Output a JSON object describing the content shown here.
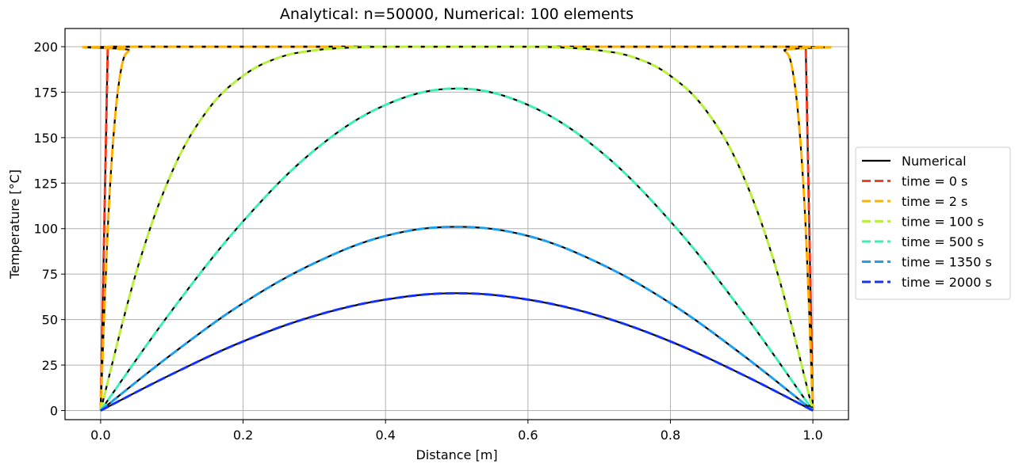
{
  "chart_data": {
    "type": "line",
    "title": "Analytical: n=50000, Numerical: 100 elements",
    "xlabel": "Distance [m]",
    "ylabel": "Temperature [°C]",
    "xlim": [
      -0.05,
      1.05
    ],
    "ylim": [
      -5,
      210
    ],
    "xticks": [
      0.0,
      0.2,
      0.4,
      0.6,
      0.8,
      1.0
    ],
    "xtick_labels": [
      "0.0",
      "0.2",
      "0.4",
      "0.6",
      "0.8",
      "1.0"
    ],
    "yticks": [
      0,
      25,
      50,
      75,
      100,
      125,
      150,
      175,
      200
    ],
    "ytick_labels": [
      "0",
      "25",
      "50",
      "75",
      "100",
      "125",
      "150",
      "175",
      "200"
    ],
    "grid": true,
    "legend_position": "right-outside",
    "numerical_label": "Numerical",
    "numerical_color": "#000000",
    "series": [
      {
        "name": "time = 0 s",
        "time": 0,
        "color": "#ff3c1e",
        "x": [
          0,
          0.01,
          0.99,
          1.0
        ],
        "values": [
          0,
          200,
          200,
          0
        ]
      },
      {
        "name": "time = 2 s",
        "time": 2,
        "color": "#ffb300",
        "x": [
          0,
          0.01,
          0.02,
          0.03,
          0.04,
          0.05,
          0.95,
          0.96,
          0.97,
          0.98,
          0.99,
          1.0
        ],
        "values": [
          0,
          100,
          160,
          190,
          198,
          200,
          200,
          198,
          190,
          160,
          100,
          0
        ]
      },
      {
        "name": "time = 100 s",
        "time": 100,
        "color": "#b8f03c",
        "x": [
          0,
          0.05,
          0.1,
          0.15,
          0.2,
          0.25,
          0.3,
          0.35,
          0.4,
          0.5,
          0.6,
          0.65,
          0.7,
          0.75,
          0.8,
          0.85,
          0.9,
          0.95,
          1.0
        ],
        "values": [
          0,
          76,
          131,
          165,
          184,
          194,
          198,
          199.5,
          200,
          200,
          200,
          199.5,
          198,
          194,
          184,
          165,
          131,
          76,
          0
        ]
      },
      {
        "name": "time = 500 s",
        "time": 500,
        "color": "#3cf0b4",
        "x": [
          0,
          0.1,
          0.2,
          0.3,
          0.4,
          0.5,
          0.6,
          0.7,
          0.8,
          0.9,
          1.0
        ],
        "values": [
          0,
          55,
          104,
          143,
          168,
          177,
          168,
          143,
          104,
          55,
          0
        ]
      },
      {
        "name": "time = 1350 s",
        "time": 1350,
        "color": "#1ea0f0",
        "x": [
          0,
          0.1,
          0.2,
          0.3,
          0.4,
          0.5,
          0.6,
          0.7,
          0.8,
          0.9,
          1.0
        ],
        "values": [
          0,
          31,
          59,
          81,
          96,
          101,
          96,
          81,
          59,
          31,
          0
        ]
      },
      {
        "name": "time = 2000 s",
        "time": 2000,
        "color": "#1432ff",
        "x": [
          0,
          0.1,
          0.2,
          0.3,
          0.4,
          0.5,
          0.6,
          0.7,
          0.8,
          0.9,
          1.0
        ],
        "values": [
          0,
          20,
          38,
          52,
          61,
          64.5,
          61,
          52,
          38,
          20,
          0
        ]
      }
    ]
  }
}
